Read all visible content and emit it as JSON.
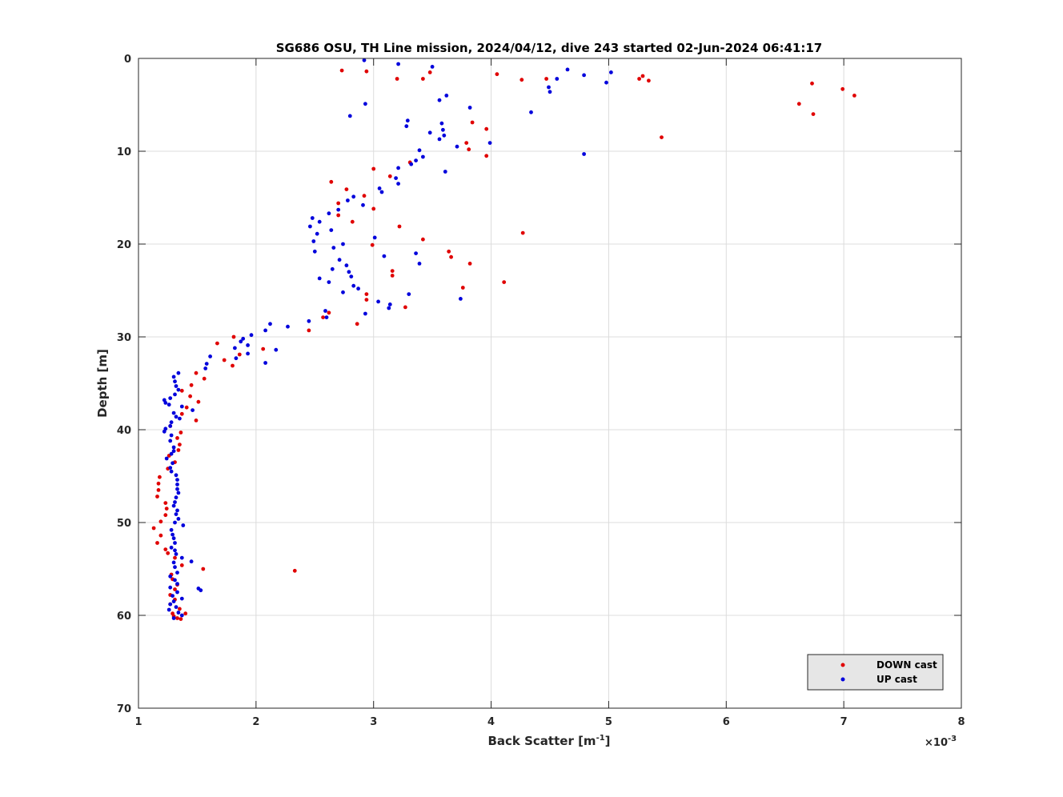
{
  "chart_data": {
    "type": "scatter",
    "title": "SG686 OSU, TH Line mission, 2024/04/12, dive 243 started 02-Jun-2024 06:41:17",
    "xlabel_main": "Back Scatter [m",
    "xlabel_sup": "-1",
    "xlabel_end": "]",
    "ylabel": "Depth [m]",
    "x_exponent_base": "×10",
    "x_exponent_power": "-3",
    "xlim": [
      1,
      8
    ],
    "ylim": [
      0,
      70
    ],
    "y_reversed": true,
    "xticks": [
      "1",
      "2",
      "3",
      "4",
      "5",
      "6",
      "7",
      "8"
    ],
    "yticks": [
      "0",
      "10",
      "20",
      "30",
      "40",
      "50",
      "60",
      "70"
    ],
    "grid": true,
    "legend_position": "bottom-right",
    "series": [
      {
        "name": "DOWN cast",
        "color": "#e00000",
        "points": [
          [
            2.73,
            1.3
          ],
          [
            2.94,
            1.4
          ],
          [
            3.2,
            2.2
          ],
          [
            3.42,
            2.2
          ],
          [
            3.48,
            1.5
          ],
          [
            4.05,
            1.7
          ],
          [
            4.26,
            2.3
          ],
          [
            4.47,
            2.2
          ],
          [
            5.26,
            2.2
          ],
          [
            5.29,
            1.9
          ],
          [
            5.34,
            2.4
          ],
          [
            6.73,
            2.7
          ],
          [
            6.99,
            3.3
          ],
          [
            7.09,
            4.0
          ],
          [
            6.62,
            4.9
          ],
          [
            6.74,
            6.0
          ],
          [
            5.45,
            8.5
          ],
          [
            3.84,
            6.9
          ],
          [
            3.96,
            7.6
          ],
          [
            3.79,
            9.1
          ],
          [
            3.81,
            9.8
          ],
          [
            3.96,
            10.5
          ],
          [
            3.31,
            11.2
          ],
          [
            3.0,
            11.9
          ],
          [
            3.14,
            12.7
          ],
          [
            2.64,
            13.3
          ],
          [
            2.77,
            14.1
          ],
          [
            2.92,
            14.8
          ],
          [
            2.7,
            15.6
          ],
          [
            3.0,
            16.2
          ],
          [
            2.7,
            16.9
          ],
          [
            2.82,
            17.6
          ],
          [
            3.22,
            18.1
          ],
          [
            4.27,
            18.8
          ],
          [
            3.42,
            19.5
          ],
          [
            2.99,
            20.1
          ],
          [
            3.64,
            20.8
          ],
          [
            3.66,
            21.4
          ],
          [
            3.82,
            22.1
          ],
          [
            3.16,
            22.9
          ],
          [
            3.16,
            23.4
          ],
          [
            4.11,
            24.1
          ],
          [
            3.76,
            24.7
          ],
          [
            2.94,
            25.4
          ],
          [
            2.94,
            26.0
          ],
          [
            3.27,
            26.8
          ],
          [
            2.62,
            27.4
          ],
          [
            2.57,
            27.9
          ],
          [
            2.86,
            28.6
          ],
          [
            2.45,
            29.3
          ],
          [
            1.81,
            30.0
          ],
          [
            1.67,
            30.7
          ],
          [
            2.06,
            31.3
          ],
          [
            1.86,
            31.9
          ],
          [
            1.73,
            32.5
          ],
          [
            1.8,
            33.1
          ],
          [
            1.49,
            33.9
          ],
          [
            1.56,
            34.5
          ],
          [
            1.45,
            35.2
          ],
          [
            1.37,
            35.8
          ],
          [
            1.44,
            36.4
          ],
          [
            1.51,
            37.0
          ],
          [
            1.41,
            37.6
          ],
          [
            1.37,
            38.3
          ],
          [
            1.49,
            39.0
          ],
          [
            1.27,
            39.6
          ],
          [
            1.36,
            40.3
          ],
          [
            1.33,
            40.9
          ],
          [
            1.35,
            41.6
          ],
          [
            1.34,
            42.2
          ],
          [
            1.26,
            42.8
          ],
          [
            1.31,
            43.5
          ],
          [
            1.25,
            44.2
          ],
          [
            1.18,
            45.1
          ],
          [
            1.17,
            45.8
          ],
          [
            1.17,
            46.5
          ],
          [
            1.16,
            47.2
          ],
          [
            1.23,
            47.9
          ],
          [
            1.24,
            48.5
          ],
          [
            1.23,
            49.2
          ],
          [
            1.19,
            49.9
          ],
          [
            1.13,
            50.6
          ],
          [
            1.19,
            51.4
          ],
          [
            1.16,
            52.2
          ],
          [
            1.23,
            52.9
          ],
          [
            1.25,
            53.3
          ],
          [
            1.31,
            53.8
          ],
          [
            1.37,
            54.6
          ],
          [
            1.55,
            55.0
          ],
          [
            2.33,
            55.2
          ],
          [
            1.28,
            55.6
          ],
          [
            1.29,
            56.1
          ],
          [
            1.33,
            56.7
          ],
          [
            1.31,
            57.2
          ],
          [
            1.27,
            57.8
          ],
          [
            1.31,
            58.3
          ],
          [
            1.27,
            58.8
          ],
          [
            1.35,
            59.3
          ],
          [
            1.29,
            59.8
          ],
          [
            1.3,
            60.1
          ],
          [
            1.33,
            60.3
          ],
          [
            1.36,
            60.4
          ],
          [
            1.4,
            59.8
          ]
        ]
      },
      {
        "name": "UP cast",
        "color": "#0000dc",
        "points": [
          [
            2.92,
            0.2
          ],
          [
            3.21,
            0.6
          ],
          [
            3.5,
            0.9
          ],
          [
            4.65,
            1.2
          ],
          [
            5.02,
            1.5
          ],
          [
            4.79,
            1.8
          ],
          [
            4.56,
            2.2
          ],
          [
            4.98,
            2.6
          ],
          [
            4.49,
            3.1
          ],
          [
            4.5,
            3.6
          ],
          [
            3.62,
            4.0
          ],
          [
            3.56,
            4.5
          ],
          [
            2.93,
            4.9
          ],
          [
            3.82,
            5.3
          ],
          [
            4.34,
            5.8
          ],
          [
            2.8,
            6.2
          ],
          [
            3.29,
            6.7
          ],
          [
            3.58,
            7.0
          ],
          [
            3.28,
            7.3
          ],
          [
            3.59,
            7.7
          ],
          [
            3.48,
            8.0
          ],
          [
            3.6,
            8.3
          ],
          [
            3.56,
            8.7
          ],
          [
            3.99,
            9.1
          ],
          [
            3.71,
            9.5
          ],
          [
            3.39,
            9.9
          ],
          [
            4.79,
            10.3
          ],
          [
            3.42,
            10.6
          ],
          [
            3.36,
            11.0
          ],
          [
            3.32,
            11.4
          ],
          [
            3.21,
            11.8
          ],
          [
            3.61,
            12.2
          ],
          [
            3.19,
            12.9
          ],
          [
            3.21,
            13.5
          ],
          [
            3.05,
            14.0
          ],
          [
            3.07,
            14.4
          ],
          [
            2.83,
            14.9
          ],
          [
            2.91,
            15.8
          ],
          [
            2.78,
            15.3
          ],
          [
            2.7,
            16.3
          ],
          [
            2.62,
            16.7
          ],
          [
            2.48,
            17.2
          ],
          [
            2.54,
            17.6
          ],
          [
            2.46,
            18.1
          ],
          [
            2.64,
            18.5
          ],
          [
            2.52,
            18.9
          ],
          [
            2.49,
            19.7
          ],
          [
            3.01,
            19.3
          ],
          [
            2.74,
            20.0
          ],
          [
            2.66,
            20.4
          ],
          [
            2.5,
            20.8
          ],
          [
            3.36,
            21.0
          ],
          [
            3.09,
            21.3
          ],
          [
            2.71,
            21.7
          ],
          [
            3.39,
            22.1
          ],
          [
            2.77,
            22.3
          ],
          [
            2.65,
            22.7
          ],
          [
            2.79,
            23.0
          ],
          [
            2.81,
            23.5
          ],
          [
            2.54,
            23.7
          ],
          [
            2.62,
            24.1
          ],
          [
            2.83,
            24.5
          ],
          [
            2.87,
            24.8
          ],
          [
            2.74,
            25.2
          ],
          [
            3.3,
            25.4
          ],
          [
            3.74,
            25.9
          ],
          [
            3.04,
            26.2
          ],
          [
            3.14,
            26.5
          ],
          [
            3.13,
            26.9
          ],
          [
            2.59,
            27.2
          ],
          [
            2.93,
            27.5
          ],
          [
            2.6,
            27.9
          ],
          [
            2.45,
            28.3
          ],
          [
            2.12,
            28.6
          ],
          [
            2.27,
            28.9
          ],
          [
            2.08,
            29.3
          ],
          [
            1.96,
            29.8
          ],
          [
            1.89,
            30.2
          ],
          [
            1.87,
            30.5
          ],
          [
            1.93,
            30.9
          ],
          [
            2.17,
            31.4
          ],
          [
            1.82,
            31.2
          ],
          [
            1.93,
            31.8
          ],
          [
            1.83,
            32.3
          ],
          [
            1.61,
            32.1
          ],
          [
            2.08,
            32.8
          ],
          [
            1.58,
            32.9
          ],
          [
            1.57,
            33.4
          ],
          [
            1.34,
            33.9
          ],
          [
            1.3,
            34.3
          ],
          [
            1.31,
            34.8
          ],
          [
            1.32,
            35.3
          ],
          [
            1.34,
            35.7
          ],
          [
            1.31,
            36.2
          ],
          [
            1.27,
            36.6
          ],
          [
            1.22,
            36.8
          ],
          [
            1.23,
            37.1
          ],
          [
            1.26,
            37.3
          ],
          [
            1.37,
            37.5
          ],
          [
            1.46,
            37.9
          ],
          [
            1.3,
            38.2
          ],
          [
            1.32,
            38.6
          ],
          [
            1.35,
            38.8
          ],
          [
            1.28,
            39.2
          ],
          [
            1.27,
            39.6
          ],
          [
            1.23,
            39.9
          ],
          [
            1.22,
            40.2
          ],
          [
            1.28,
            40.6
          ],
          [
            1.27,
            41.2
          ],
          [
            1.3,
            41.9
          ],
          [
            1.3,
            42.3
          ],
          [
            1.28,
            42.6
          ],
          [
            1.24,
            43.1
          ],
          [
            1.29,
            43.6
          ],
          [
            1.27,
            44.1
          ],
          [
            1.28,
            44.5
          ],
          [
            1.32,
            44.9
          ],
          [
            1.33,
            45.4
          ],
          [
            1.33,
            45.9
          ],
          [
            1.33,
            46.4
          ],
          [
            1.34,
            46.8
          ],
          [
            1.32,
            47.3
          ],
          [
            1.31,
            47.8
          ],
          [
            1.3,
            48.2
          ],
          [
            1.33,
            48.7
          ],
          [
            1.32,
            49.1
          ],
          [
            1.34,
            49.6
          ],
          [
            1.31,
            50.0
          ],
          [
            1.38,
            50.3
          ],
          [
            1.28,
            50.8
          ],
          [
            1.29,
            51.3
          ],
          [
            1.3,
            51.7
          ],
          [
            1.31,
            52.2
          ],
          [
            1.28,
            52.7
          ],
          [
            1.31,
            53.0
          ],
          [
            1.32,
            53.4
          ],
          [
            1.37,
            53.8
          ],
          [
            1.3,
            54.3
          ],
          [
            1.45,
            54.2
          ],
          [
            1.31,
            54.8
          ],
          [
            1.33,
            55.4
          ],
          [
            1.27,
            55.8
          ],
          [
            1.31,
            56.2
          ],
          [
            1.33,
            56.6
          ],
          [
            1.27,
            57.0
          ],
          [
            1.51,
            57.1
          ],
          [
            1.53,
            57.3
          ],
          [
            1.33,
            57.5
          ],
          [
            1.29,
            57.9
          ],
          [
            1.37,
            58.2
          ],
          [
            1.3,
            58.5
          ],
          [
            1.27,
            58.8
          ],
          [
            1.32,
            59.1
          ],
          [
            1.26,
            59.4
          ],
          [
            1.34,
            59.7
          ],
          [
            1.37,
            60.0
          ],
          [
            1.3,
            60.3
          ]
        ]
      }
    ]
  }
}
